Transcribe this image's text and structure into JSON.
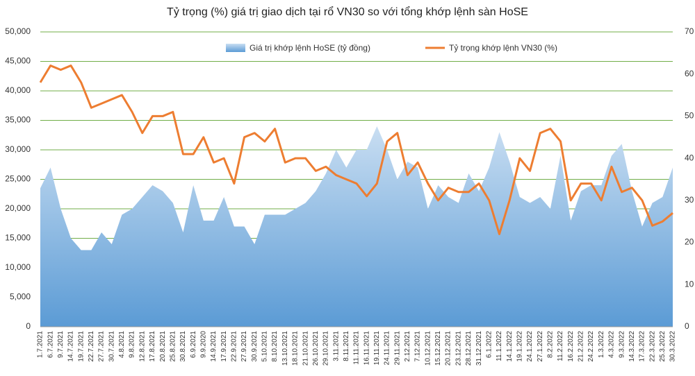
{
  "chart_data": {
    "type": "area-line",
    "title": "Tỷ trọng (%) giá trị giao dịch tại rổ VN30 so với tổng khớp lệnh sàn HoSE",
    "categories": [
      "1.7.2021",
      "6.7.2021",
      "9.7.2021",
      "14.7.2021",
      "19.7.2021",
      "22.7.2021",
      "27.7.2021",
      "30.7.2021",
      "4.8.2021",
      "9.8.2021",
      "12.8.2021",
      "17.8.2021",
      "20.8.2021",
      "25.8.2021",
      "30.8.2021",
      "6.9.2021",
      "9.9.2020",
      "14.9.2021",
      "17.9.2021",
      "22.9.2021",
      "27.9.2021",
      "30.9.2021",
      "5.10.2021",
      "8.10.2021",
      "13.10.2021",
      "18.10.2021",
      "21.10.2021",
      "26.10.2021",
      "29.10.2021",
      "3.11.2021",
      "8.11.2021",
      "11.11.2021",
      "16.11.2021",
      "19.11.2021",
      "24.11.2021",
      "29.11.2021",
      "2.12.2021",
      "7.12.2021",
      "10.12.2021",
      "15.12.2021",
      "20.12.2021",
      "23.12.2021",
      "28.12.2021",
      "31.12.2021",
      "6.1.2022",
      "11.1.2022",
      "14.1.2022",
      "19.1.2022",
      "24.1.2022",
      "27.1.2022",
      "8.2.2022",
      "11.2.2022",
      "16.2.2022",
      "21.2.2022",
      "24.2.2022",
      "1.3.2022",
      "4.3.2022",
      "9.3.2022",
      "14.3.2022",
      "17.3.2022",
      "22.3.2022",
      "25.3.2022",
      "30.3.2022"
    ],
    "series": [
      {
        "name": "Giá trị khớp lệnh HoSE (tỷ đồng)",
        "type": "area",
        "color": "#5b9bd5",
        "values": [
          23500,
          27000,
          20000,
          15000,
          13000,
          13000,
          16000,
          14000,
          19000,
          20000,
          22000,
          24000,
          23000,
          21000,
          16000,
          24000,
          18000,
          18000,
          22000,
          17000,
          17000,
          14000,
          19000,
          19000,
          19000,
          20000,
          21000,
          23000,
          26000,
          30000,
          27000,
          30000,
          30000,
          34000,
          30000,
          25000,
          28000,
          27000,
          20000,
          24000,
          22000,
          21000,
          26000,
          23000,
          27000,
          33000,
          28000,
          22000,
          21000,
          22000,
          20000,
          29000,
          18000,
          23000,
          24000,
          24000,
          29000,
          31000,
          23000,
          17000,
          21000,
          22000,
          27000
        ]
      },
      {
        "name": "Tỷ trọng khớp lệnh VN30 (%)",
        "type": "line",
        "axis": "y2",
        "color": "#ed7d31",
        "values": [
          58,
          62,
          61,
          62,
          58,
          52,
          53,
          54,
          55,
          51,
          46,
          50,
          50,
          51,
          41,
          41,
          45,
          39,
          40,
          34,
          45,
          46,
          44,
          47,
          39,
          40,
          40,
          37,
          38,
          36,
          35,
          34,
          31,
          34,
          44,
          46,
          36,
          39,
          34,
          30,
          33,
          32,
          32,
          34,
          30,
          22,
          30,
          40,
          37,
          46,
          47,
          44,
          30,
          34,
          34,
          30,
          38,
          32,
          33,
          30,
          24,
          25,
          27
        ]
      }
    ],
    "ylim": [
      0,
      50000
    ],
    "yticks": [
      0,
      {
        "value": 5000,
        "label": "5,000"
      },
      {
        "value": 10000,
        "label": "10,000"
      },
      {
        "value": 15000,
        "label": "15,000"
      },
      {
        "value": 20000,
        "label": "20,000"
      },
      {
        "value": 25000,
        "label": "25,000"
      },
      {
        "value": 30000,
        "label": "30,000"
      },
      {
        "value": 35000,
        "label": "35,000"
      },
      {
        "value": 40000,
        "label": "40,000"
      },
      {
        "value": 45000,
        "label": "45,000"
      },
      {
        "value": 50000,
        "label": "50,000"
      }
    ],
    "y2lim": [
      0,
      70
    ],
    "y2ticks": [
      0,
      10,
      20,
      30,
      40,
      50,
      60,
      70
    ],
    "grid": true,
    "grid_color": "#70ad47",
    "legend": "top"
  }
}
